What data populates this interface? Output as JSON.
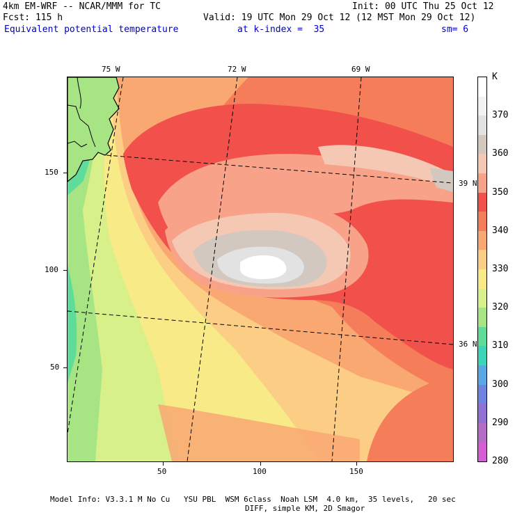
{
  "header": {
    "model": "4km EM-WRF -- NCAR/MMM for TC",
    "init": "Init: 00 UTC Thu 25 Oct 12",
    "fcst": "Fcst: 115 h",
    "valid": "Valid: 19 UTC Mon 29 Oct 12 (12 MST Mon 29 Oct 12)",
    "field": "Equivalent potential temperature",
    "level": "at k-index =  35",
    "smooth": "sm= 6"
  },
  "axes": {
    "lon_labels": [
      "75 W",
      "72 W",
      "69 W"
    ],
    "lat_labels": [
      "39 N",
      "36 N"
    ],
    "x_ticks": [
      "50",
      "100",
      "150"
    ],
    "y_ticks": [
      "150",
      "100",
      "50"
    ]
  },
  "colorbar": {
    "unit": "K",
    "labels": [
      "370",
      "360",
      "350",
      "340",
      "330",
      "320",
      "310",
      "300",
      "290",
      "280"
    ],
    "colors": [
      "#ffffff",
      "#f2f2f2",
      "#e2e2e2",
      "#d2c8c0",
      "#f5c8b4",
      "#f8a28a",
      "#f2504a",
      "#f57d5a",
      "#f9a872",
      "#fbcd85",
      "#f7ea87",
      "#d8f08a",
      "#a7e584",
      "#5fdc9a",
      "#3cd5b8",
      "#5aa8e6",
      "#6f83e0",
      "#8f71d4",
      "#b46cc4",
      "#d65ed4"
    ],
    "color_meaning": "top-to-bottom segments from highest to lowest theta-e; labeled every 10 K"
  },
  "footer": {
    "line1": "Model Info: V3.3.1 M No Cu   YSU PBL  WSM 6class  Noah LSM  4.0 km,  35 levels,   20 sec",
    "line2": "DIFF, simple KM, 2D Smagor"
  }
}
